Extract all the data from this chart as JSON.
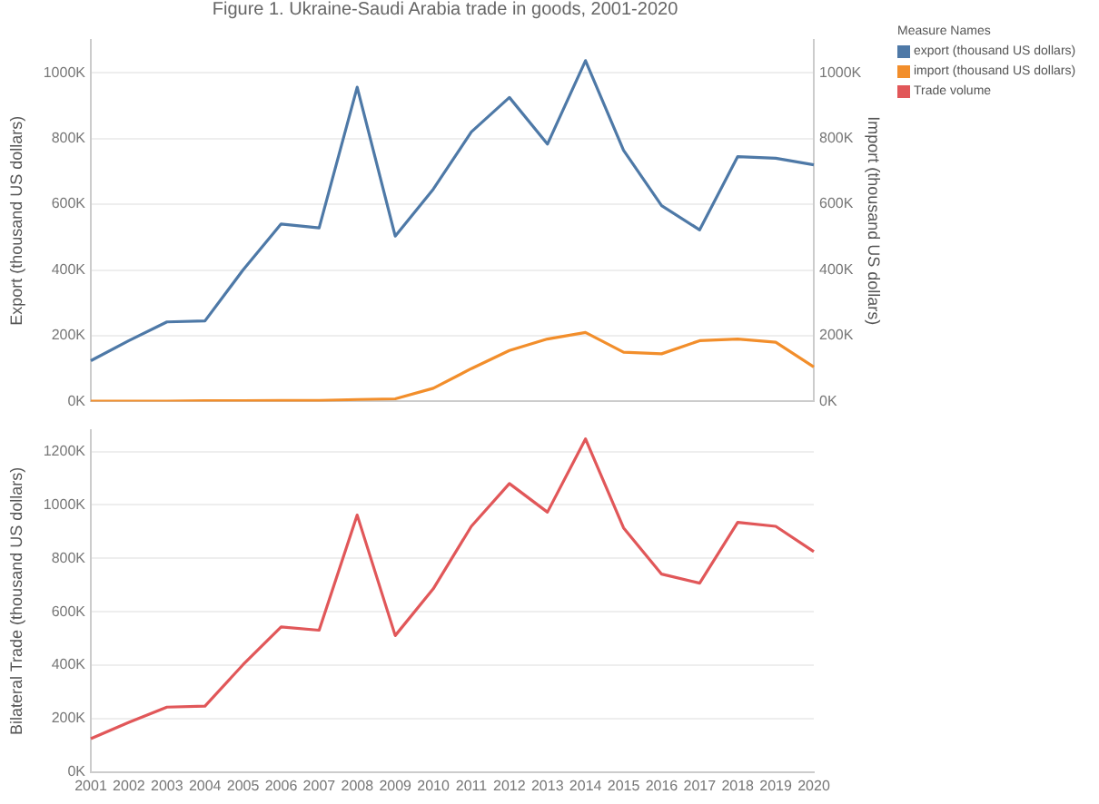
{
  "chart_data": [
    {
      "type": "line",
      "title": "Figure 1. Ukraine-Saudi Arabia trade in goods, 2001-2020",
      "ylabel": "Export (thousand US dollars)",
      "y2label": "Import (thousand US dollars)",
      "legend_title": "Measure Names",
      "legend": "right",
      "categories": [
        null,
        null,
        null,
        null,
        null,
        null,
        null,
        null,
        null,
        null,
        null,
        null,
        null,
        null,
        null,
        null,
        null,
        null,
        null,
        null
      ],
      "series": [
        {
          "name": "export (thousand US dollars)",
          "color": "#4e79a7",
          "values": [
            124000,
            185000,
            242000,
            245000,
            400000,
            540000,
            528000,
            956000,
            503000,
            646000,
            820000,
            925000,
            783000,
            1037000,
            764000,
            596000,
            522000,
            745000,
            740000,
            720000
          ]
        },
        {
          "name": "import (thousand US dollars)",
          "color": "#f28e2b",
          "axis": "y2",
          "values": [
            1000,
            1000,
            1000,
            2000,
            2000,
            3000,
            3000,
            6000,
            8000,
            40000,
            100000,
            155000,
            190000,
            210000,
            150000,
            145000,
            185000,
            190000,
            180000,
            105000
          ]
        }
      ],
      "ylim": [
        0,
        1100000
      ],
      "yticks": [
        {
          "value": 0,
          "label": "0K"
        },
        {
          "value": 200000,
          "label": "200K"
        },
        {
          "value": 400000,
          "label": "400K"
        },
        {
          "value": 600000,
          "label": "600K"
        },
        {
          "value": 800000,
          "label": "800K"
        },
        {
          "value": 1000000,
          "label": "1000K"
        }
      ],
      "y2lim": [
        0,
        1100000
      ],
      "y2ticks": [
        {
          "value": 0,
          "label": "0K"
        },
        {
          "value": 200000,
          "label": "200K"
        },
        {
          "value": 400000,
          "label": "400K"
        },
        {
          "value": 600000,
          "label": "600K"
        },
        {
          "value": 800000,
          "label": "800K"
        },
        {
          "value": 1000000,
          "label": "1000K"
        }
      ],
      "grid": "y",
      "tick_labels": [
        "y",
        "y2"
      ]
    },
    {
      "type": "line",
      "ylabel": "Bilateral Trade (thousand US dollars)",
      "legend": "right",
      "categories": [
        "2001",
        "2002",
        "2003",
        "2004",
        "2005",
        "2006",
        "2007",
        "2008",
        "2009",
        "2010",
        "2011",
        "2012",
        "2013",
        "2014",
        "2015",
        "2016",
        "2017",
        "2018",
        "2019",
        "2020"
      ],
      "series": [
        {
          "name": "Trade volume",
          "color": "#e15759",
          "values": [
            125000,
            186000,
            243000,
            247000,
            402000,
            543000,
            531000,
            962000,
            511000,
            686000,
            920000,
            1080000,
            973000,
            1247000,
            914000,
            741000,
            707000,
            935000,
            920000,
            825000
          ]
        }
      ],
      "ylim": [
        0,
        1280000
      ],
      "yticks": [
        {
          "value": 0,
          "label": "0K"
        },
        {
          "value": 200000,
          "label": "200K"
        },
        {
          "value": 400000,
          "label": "400K"
        },
        {
          "value": 600000,
          "label": "600K"
        },
        {
          "value": 800000,
          "label": "800K"
        },
        {
          "value": 1000000,
          "label": "1000K"
        },
        {
          "value": 1200000,
          "label": "1200K"
        }
      ],
      "grid": "y"
    }
  ]
}
